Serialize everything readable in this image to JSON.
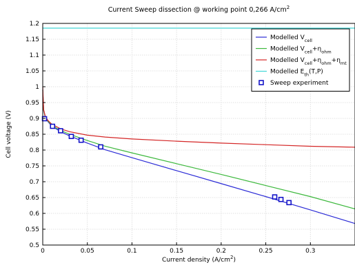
{
  "chart_data": {
    "type": "line",
    "title": {
      "main": "Current Sweep dissection @ working point 0,266 A/cm",
      "sup": "2"
    },
    "xlabel": {
      "main": "Current density (A/cm",
      "sup": "2",
      "end": ")"
    },
    "ylabel": "Cell voltage (V)",
    "xlim": [
      0,
      0.35
    ],
    "ylim": [
      0.5,
      1.2
    ],
    "xticks": [
      0,
      0.05,
      0.1,
      0.15,
      0.2,
      0.25,
      0.3
    ],
    "xtick_labels": [
      "0",
      "0.05",
      "0.1",
      "0.15",
      "0.2",
      "0.25",
      "0.3"
    ],
    "yticks": [
      0.5,
      0.55,
      0.6,
      0.65,
      0.7,
      0.75,
      0.8,
      0.85,
      0.9,
      0.95,
      1,
      1.05,
      1.1,
      1.15,
      1.2
    ],
    "ytick_labels": [
      "0.5",
      "0.55",
      "0.6",
      "0.65",
      "0.7",
      "0.75",
      "0.8",
      "0.85",
      "0.9",
      "0.95",
      "1",
      "1.05",
      "1.1",
      "1.15",
      "1.2"
    ],
    "grid": true,
    "legend_position": "top-right",
    "series": [
      {
        "name": "Modelled V",
        "name_parts": [
          {
            "t": "Modelled V"
          },
          {
            "t": "cell",
            "sub": true
          }
        ],
        "color": "#2b2bd6",
        "kind": "line",
        "x": [
          0,
          0.001,
          0.003,
          0.006,
          0.01,
          0.02,
          0.03,
          0.05,
          0.07,
          0.1,
          0.15,
          0.2,
          0.25,
          0.3,
          0.35
        ],
        "y": [
          0.99,
          0.925,
          0.902,
          0.889,
          0.876,
          0.858,
          0.845,
          0.822,
          0.801,
          0.776,
          0.735,
          0.694,
          0.653,
          0.611,
          0.568
        ]
      },
      {
        "name": "Modelled V+η_ohm",
        "name_parts": [
          {
            "t": "Modelled V"
          },
          {
            "t": "cell",
            "sub": true
          },
          {
            "t": "+η"
          },
          {
            "t": "ohm",
            "sub": true
          }
        ],
        "color": "#3cb83c",
        "kind": "line",
        "x": [
          0,
          0.001,
          0.003,
          0.006,
          0.01,
          0.02,
          0.03,
          0.05,
          0.07,
          0.1,
          0.15,
          0.2,
          0.25,
          0.3,
          0.35
        ],
        "y": [
          0.99,
          0.926,
          0.903,
          0.891,
          0.878,
          0.862,
          0.85,
          0.83,
          0.812,
          0.791,
          0.757,
          0.723,
          0.688,
          0.653,
          0.614
        ]
      },
      {
        "name": "Modelled V+η_ohm+η_mt",
        "name_parts": [
          {
            "t": "Modelled V"
          },
          {
            "t": "cell",
            "sub": true
          },
          {
            "t": "+η"
          },
          {
            "t": "ohm",
            "sub": true
          },
          {
            "t": "+η"
          },
          {
            "t": "mt",
            "sub": true
          }
        ],
        "color": "#d42525",
        "kind": "line",
        "x": [
          0,
          0.001,
          0.003,
          0.006,
          0.01,
          0.02,
          0.03,
          0.05,
          0.07,
          0.1,
          0.15,
          0.2,
          0.25,
          0.3,
          0.35
        ],
        "y": [
          1.0,
          0.928,
          0.905,
          0.893,
          0.882,
          0.867,
          0.858,
          0.847,
          0.841,
          0.835,
          0.828,
          0.822,
          0.817,
          0.812,
          0.809
        ]
      },
      {
        "name": "Modelled E_th(T,P)",
        "name_parts": [
          {
            "t": "Modelled E"
          },
          {
            "t": "th",
            "sub": true
          },
          {
            "t": "(T,P)"
          }
        ],
        "color": "#3fd6d6",
        "kind": "line",
        "x": [
          0,
          0.35
        ],
        "y": [
          1.185,
          1.185
        ]
      },
      {
        "name": "Sweep experiment",
        "name_parts": [
          {
            "t": "Sweep experiment"
          }
        ],
        "color": "#1414c8",
        "kind": "markers",
        "x": [
          0.002,
          0.011,
          0.02,
          0.032,
          0.043,
          0.065,
          0.26,
          0.267,
          0.276
        ],
        "y": [
          0.899,
          0.875,
          0.861,
          0.843,
          0.831,
          0.81,
          0.652,
          0.644,
          0.634
        ]
      }
    ]
  }
}
